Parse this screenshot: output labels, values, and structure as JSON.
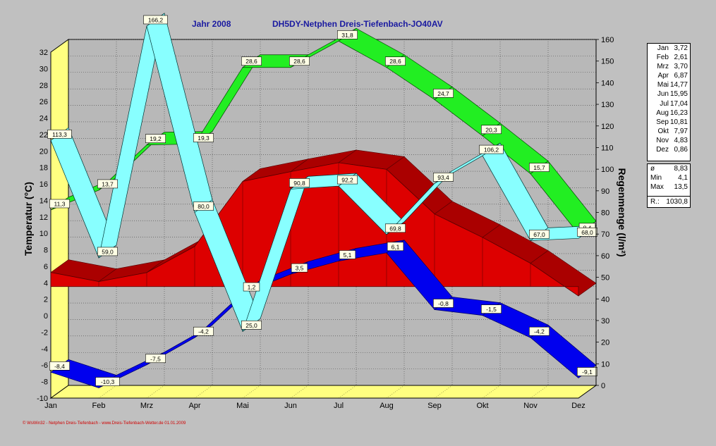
{
  "header": {
    "year_label": "Jahr  2008",
    "station_label": "DH5DY-Netphen Dreis-Tiefenbach-JO40AV"
  },
  "footer": "© WsWin32 - Netphen Dreis-Tiefenbach - www.Dreis-Tiefenbach-Wetter.de  01.01.2009",
  "legend": {
    "monthly": [
      {
        "month": "Jan",
        "value": "3,72"
      },
      {
        "month": "Feb",
        "value": "2,61"
      },
      {
        "month": "Mrz",
        "value": "3,70"
      },
      {
        "month": "Apr",
        "value": "6,87"
      },
      {
        "month": "Mai",
        "value": "14,77"
      },
      {
        "month": "Jun",
        "value": "15,95"
      },
      {
        "month": "Jul",
        "value": "17,04"
      },
      {
        "month": "Aug",
        "value": "16,23"
      },
      {
        "month": "Sep",
        "value": "10,81"
      },
      {
        "month": "Okt",
        "value": "7,97"
      },
      {
        "month": "Nov",
        "value": "4,83"
      },
      {
        "month": "Dez",
        "value": "0,86"
      }
    ],
    "stats": [
      {
        "label": "ø",
        "value": "8,83"
      },
      {
        "label": "Min",
        "value": "4,1"
      },
      {
        "label": "Max",
        "value": "13,5"
      }
    ],
    "rain_total": {
      "label": "R.:",
      "value": "1030,8"
    }
  },
  "colors": {
    "background": "#c0c0c0",
    "plot_back": "#b8b8b8",
    "wall": "#ffff80",
    "mean_area": "#dd0000",
    "max_band": "#22ee22",
    "min_band": "#0000ee",
    "rain_band": "#88ffff",
    "title": "#1a1aa0"
  },
  "chart_data": {
    "type": "line",
    "title": "Jahr  2008    DH5DY-Netphen Dreis-Tiefenbach-JO40AV",
    "categories": [
      "Jan",
      "Feb",
      "Mrz",
      "Apr",
      "Mai",
      "Jun",
      "Jul",
      "Aug",
      "Sep",
      "Okt",
      "Nov",
      "Dez"
    ],
    "ylabel": "Temperatur  (°C)",
    "y2label": "Regenmenge  (l/m²)",
    "ylim": [
      -10,
      32
    ],
    "y2lim": [
      0,
      160
    ],
    "yticks": [
      "-10",
      "-8",
      "-6",
      "-4",
      "-2",
      "0",
      "2",
      "4",
      "6",
      "8",
      "10",
      "12",
      "14",
      "16",
      "18",
      "20",
      "22",
      "24",
      "26",
      "28",
      "30",
      "32"
    ],
    "y2ticks": [
      "0",
      "10",
      "20",
      "30",
      "40",
      "50",
      "60",
      "70",
      "80",
      "90",
      "100",
      "110",
      "120",
      "130",
      "140",
      "150",
      "160"
    ],
    "grid": true,
    "series": [
      {
        "type": "area",
        "values": [
          3.72,
          2.61,
          3.7,
          6.87,
          14.77,
          15.95,
          17.04,
          16.23,
          10.81,
          7.97,
          4.83,
          0.86
        ]
      },
      {
        "type": "line",
        "axis": "left",
        "values": [
          11.3,
          13.7,
          19.2,
          19.3,
          28.6,
          28.6,
          31.8,
          28.6,
          24.7,
          20.3,
          15.7,
          8.4
        ],
        "labels": [
          "11,3",
          "13,7",
          "19,2",
          "19,3",
          "28,6",
          "28,6",
          "31,8",
          "28,6",
          "24,7",
          "20,3",
          "15,7",
          "8,4"
        ]
      },
      {
        "type": "line",
        "axis": "left",
        "values": [
          -8.4,
          -10.3,
          -7.5,
          -4.2,
          1.2,
          3.5,
          5.1,
          6.1,
          -0.8,
          -1.5,
          -4.2,
          -9.1
        ],
        "labels": [
          "-8,4",
          "-10,3",
          "-7,5",
          "-4,2",
          "1,2",
          "3,5",
          "5,1",
          "6,1",
          "-0,8",
          "-1,5",
          "-4,2",
          "-9,1"
        ]
      },
      {
        "type": "line",
        "axis": "right",
        "values": [
          113.3,
          59.0,
          166.2,
          80.0,
          25.0,
          90.8,
          92.2,
          69.8,
          93.4,
          106.2,
          67.0,
          68.0
        ],
        "labels": [
          "113,3",
          "59,0",
          "166,2",
          "80,0",
          "25,0",
          "90,8",
          "92,2",
          "69,8",
          "93,4",
          "106,2",
          "67,0",
          "68,0"
        ]
      }
    ]
  }
}
